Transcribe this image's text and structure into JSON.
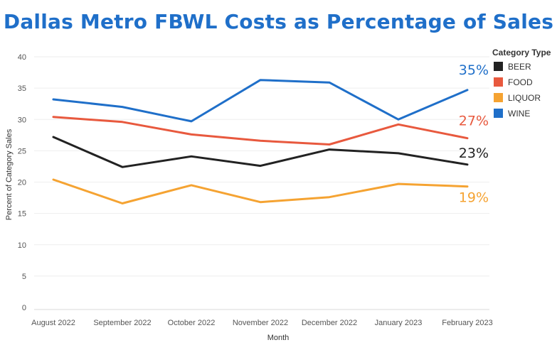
{
  "colors": {
    "title": "#1f6fc9",
    "grid": "#eeeeee",
    "BEER": "#222222",
    "FOOD": "#e8593e",
    "LIQUOR": "#f5a332",
    "WINE": "#1f6fc9"
  },
  "chart_data": {
    "type": "line",
    "title": "Dallas Metro FBWL Costs as Percentage of Sales",
    "xlabel": "Month",
    "ylabel": "Percent of Category Sales",
    "ylim": [
      0,
      40
    ],
    "yticks": [
      "0",
      "5",
      "10",
      "15",
      "20",
      "25",
      "30",
      "35",
      "40"
    ],
    "categories": [
      "August 2022",
      "September 2022",
      "October 2022",
      "November 2022",
      "December 2022",
      "January 2023",
      "February 2023"
    ],
    "legend_title": "Category Type",
    "legend_position": "top-right",
    "grid": true,
    "series": [
      {
        "name": "BEER",
        "values": [
          27.2,
          22.4,
          24.1,
          22.6,
          25.2,
          24.6,
          22.8
        ],
        "end_label": "23%"
      },
      {
        "name": "FOOD",
        "values": [
          30.4,
          29.6,
          27.6,
          26.6,
          26.0,
          29.2,
          27.0
        ],
        "end_label": "27%"
      },
      {
        "name": "LIQUOR",
        "values": [
          20.4,
          16.6,
          19.5,
          16.8,
          17.6,
          19.7,
          19.3
        ],
        "end_label": "19%"
      },
      {
        "name": "WINE",
        "values": [
          33.2,
          32.0,
          29.7,
          36.3,
          35.9,
          30.0,
          34.7
        ],
        "end_label": "35%"
      }
    ]
  }
}
